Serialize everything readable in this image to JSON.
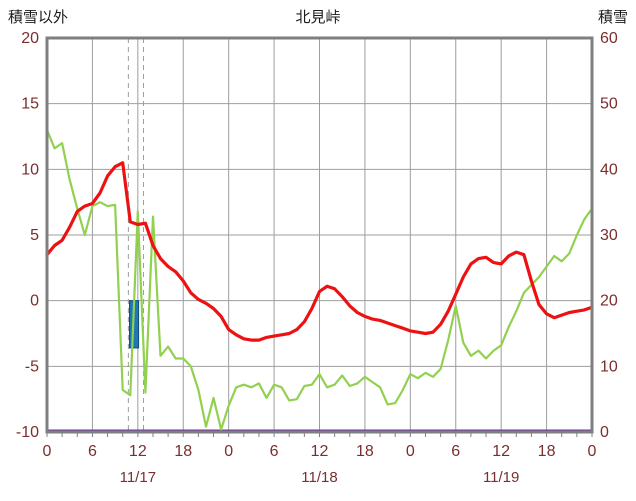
{
  "chart_data": {
    "type": "line",
    "title": "北見峠",
    "left_axis": {
      "label": "積雪以外",
      "min": -10,
      "max": 20,
      "ticks": [
        20,
        15,
        10,
        5,
        0,
        -5,
        -10
      ]
    },
    "right_axis": {
      "label": "積雪",
      "min": 0,
      "max": 60,
      "ticks": [
        60,
        50,
        40,
        30,
        20,
        10,
        0
      ]
    },
    "x_axis": {
      "min": 0,
      "max": 72,
      "tick_step": 6,
      "tick_labels": [
        "0",
        "6",
        "12",
        "18",
        "0",
        "6",
        "12",
        "18",
        "0",
        "6",
        "12",
        "18",
        "0"
      ],
      "date_labels": [
        "11/17",
        "11/18",
        "11/19"
      ],
      "date_positions": [
        12,
        36,
        60
      ]
    },
    "grid": true,
    "gap_lines": [
      10.75,
      12.75
    ],
    "series": [
      {
        "id": "blue-bar",
        "type": "bar",
        "axis": "left",
        "color": "#1f78b4",
        "stroke": "#0f4d7d",
        "bars": [
          {
            "x": 10.9,
            "width": 1.2,
            "from": 0,
            "to": -3.6
          }
        ]
      },
      {
        "id": "purple-line",
        "type": "line",
        "axis": "right",
        "color": "#7030a0",
        "width": 2.5,
        "constant": 0
      },
      {
        "id": "green-line",
        "type": "line",
        "axis": "left",
        "color": "#92d050",
        "width": 2.2,
        "values": [
          13.0,
          11.6,
          12.0,
          9.2,
          7.0,
          5.0,
          7.2,
          7.5,
          7.2,
          7.3,
          -6.8,
          -7.2,
          6.8,
          -7.0,
          6.4,
          -4.2,
          -3.5,
          -4.4,
          -4.4,
          -5.0,
          -6.8,
          -9.6,
          -7.4,
          -9.8,
          -8.0,
          -6.6,
          -6.4,
          -6.6,
          -6.3,
          -7.4,
          -6.4,
          -6.6,
          -7.6,
          -7.5,
          -6.5,
          -6.4,
          -5.6,
          -6.6,
          -6.4,
          -5.7,
          -6.5,
          -6.3,
          -5.8,
          -6.2,
          -6.6,
          -7.9,
          -7.8,
          -6.8,
          -5.6,
          -5.9,
          -5.5,
          -5.8,
          -5.2,
          -3.0,
          -0.4,
          -3.2,
          -4.2,
          -3.8,
          -4.4,
          -3.8,
          -3.4,
          -2.0,
          -0.8,
          0.6,
          1.2,
          1.8,
          2.6,
          3.4,
          3.0,
          3.6,
          5.0,
          6.2,
          7.0
        ]
      },
      {
        "id": "red-line",
        "type": "line",
        "axis": "left",
        "color": "#ee1111",
        "width": 3.2,
        "values": [
          3.5,
          4.2,
          4.6,
          5.6,
          6.8,
          7.2,
          7.4,
          8.2,
          9.5,
          10.2,
          10.5,
          6.0,
          5.8,
          5.9,
          4.2,
          3.2,
          2.6,
          2.2,
          1.5,
          0.6,
          0.1,
          -0.2,
          -0.6,
          -1.2,
          -2.2,
          -2.6,
          -2.9,
          -3.0,
          -3.0,
          -2.8,
          -2.7,
          -2.6,
          -2.5,
          -2.2,
          -1.6,
          -0.6,
          0.7,
          1.1,
          0.9,
          0.3,
          -0.4,
          -0.9,
          -1.2,
          -1.4,
          -1.5,
          -1.7,
          -1.9,
          -2.1,
          -2.3,
          -2.4,
          -2.5,
          -2.4,
          -1.8,
          -0.8,
          0.5,
          1.8,
          2.8,
          3.2,
          3.3,
          2.9,
          2.8,
          3.4,
          3.7,
          3.5,
          1.5,
          -0.3,
          -1.0,
          -1.3,
          -1.1,
          -0.9,
          -0.8,
          -0.7,
          -0.5
        ]
      }
    ],
    "colors": {
      "background": "#ffffff",
      "grid": "#9e9e9e",
      "border": "#7f7f7f",
      "tick_text": "#7a2e2e",
      "title_text": "#1a1a1a"
    }
  }
}
